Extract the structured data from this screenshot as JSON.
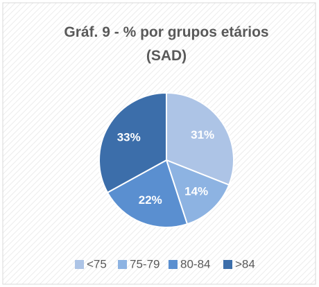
{
  "chart_data": {
    "type": "pie",
    "title": "Gráf. 9 - % por grupos etários (SAD)",
    "categories": [
      "<75",
      "75-79",
      "80-84",
      ">84"
    ],
    "values": [
      31,
      14,
      22,
      33
    ],
    "value_labels": [
      "31%",
      "14%",
      "22%",
      "33%"
    ],
    "colors": [
      "#adc4e6",
      "#8db3e2",
      "#5a8fd0",
      "#3c6eaa"
    ],
    "legend": "bottom"
  }
}
